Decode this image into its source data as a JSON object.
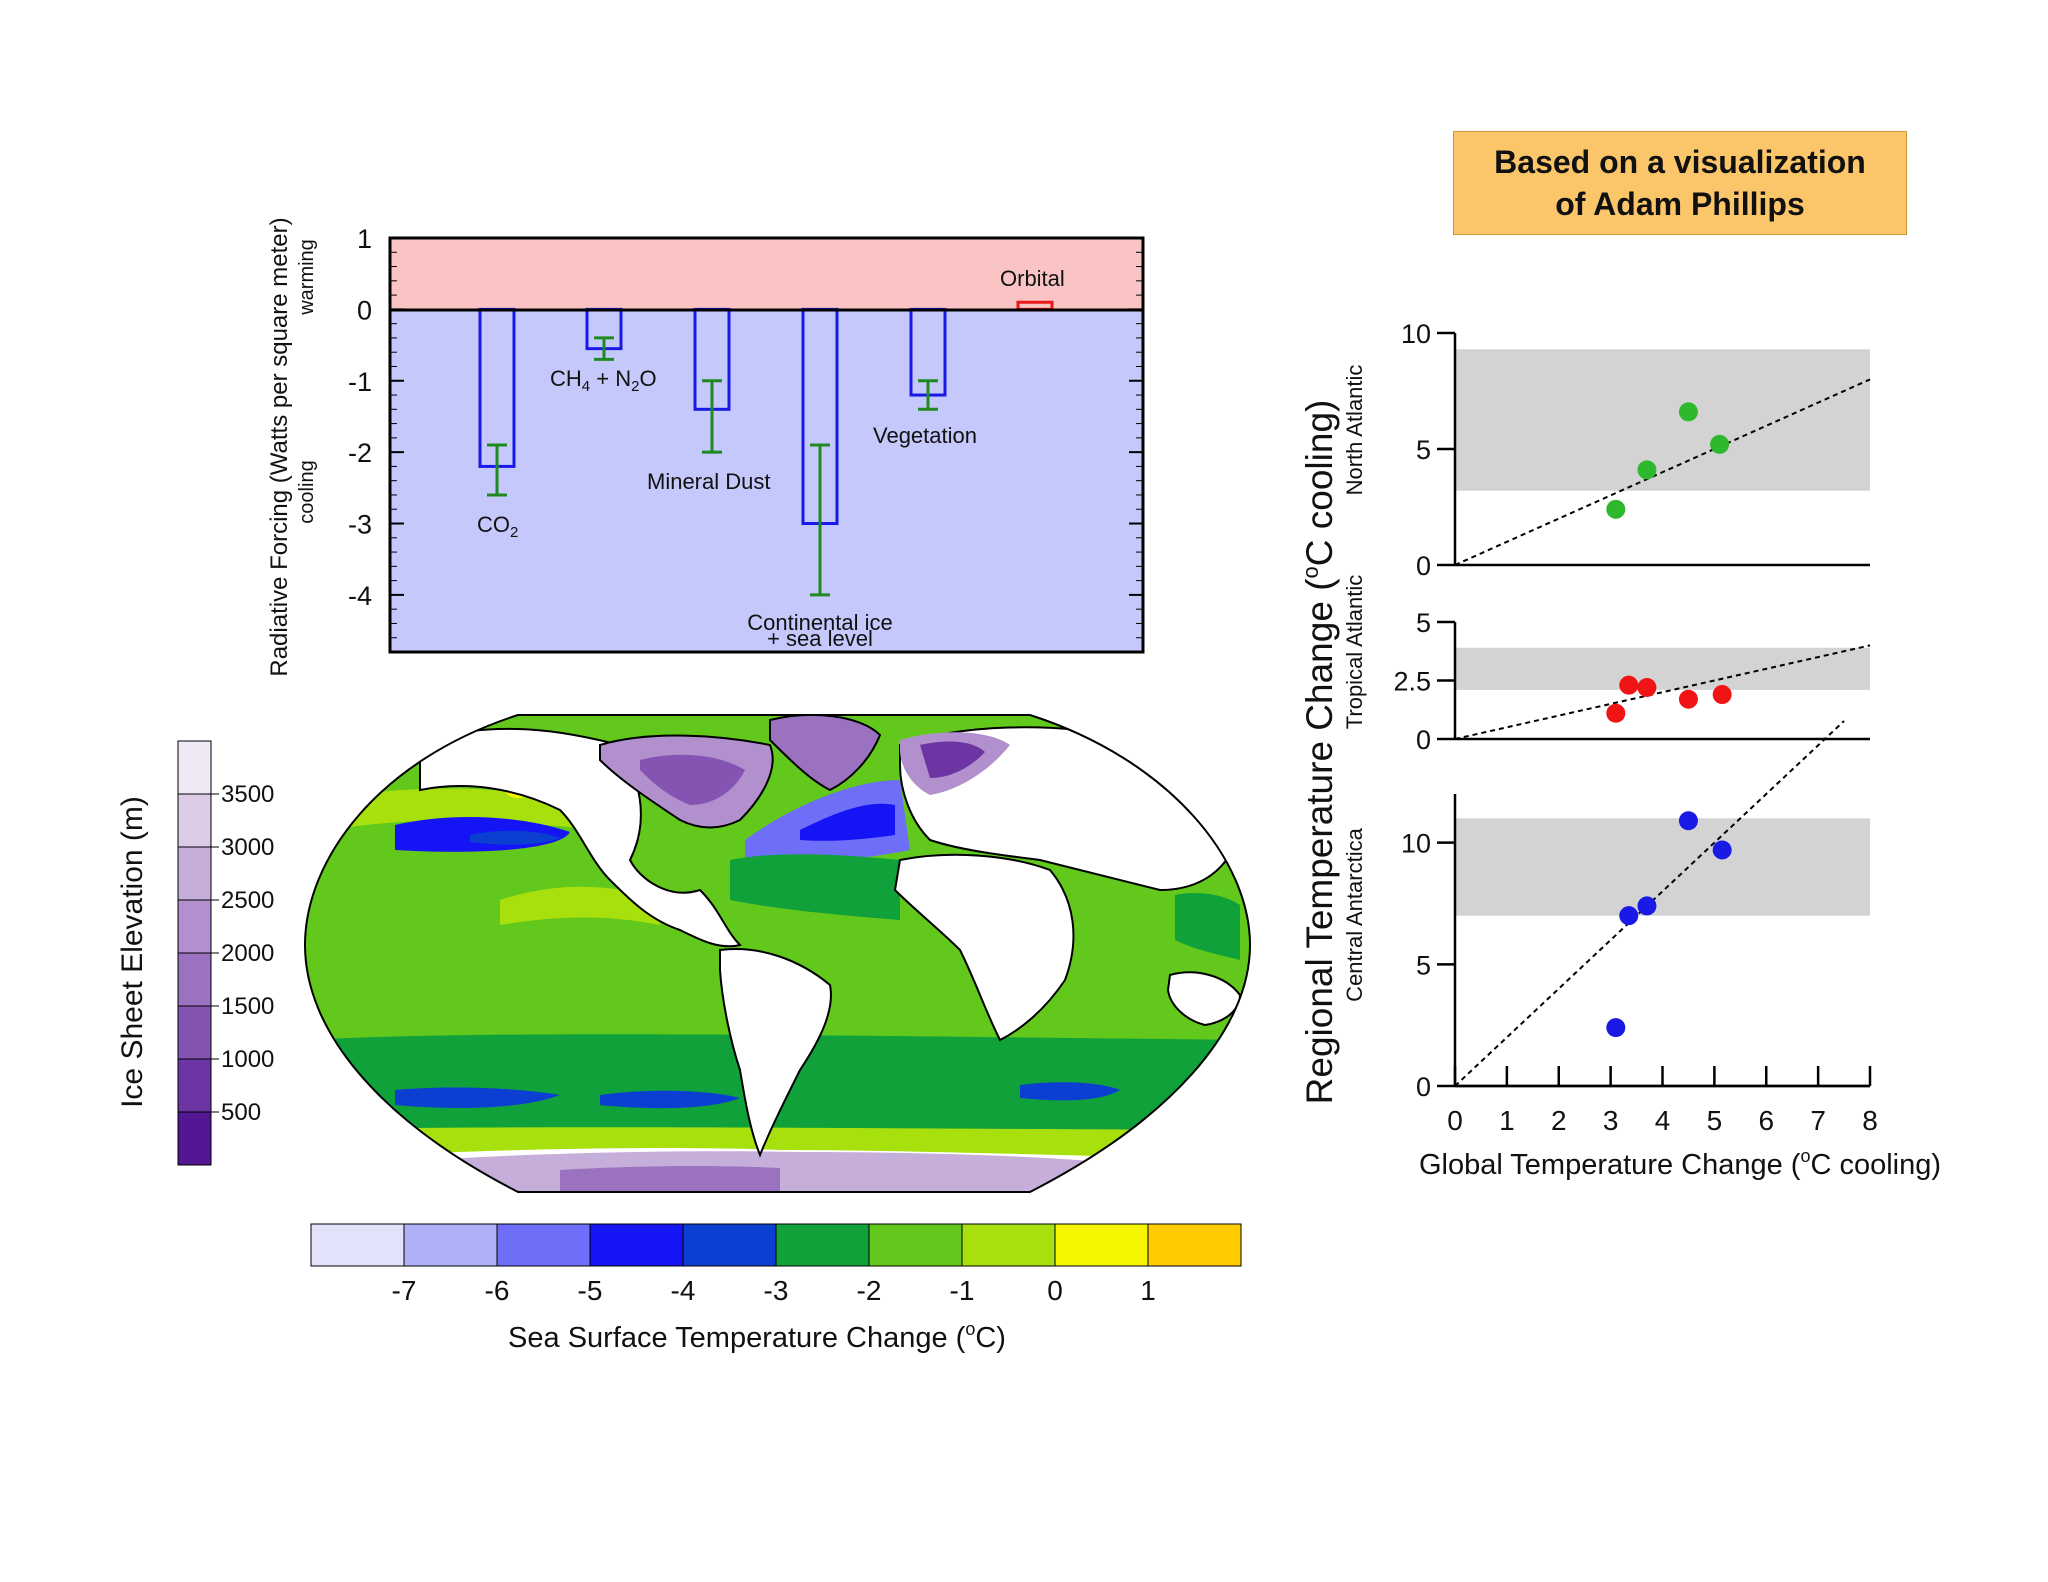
{
  "credit": {
    "line1": "Based on a visualization",
    "line2": "of Adam Phillips"
  },
  "colors": {
    "warming_bg": "#fbc4c4",
    "cooling_bg": "#c5c8fb",
    "bar_outline": "#1a1ae6",
    "error_bar": "#1f8a1f",
    "orbital_outline": "#e61a1a",
    "band_gray": "#d3d3d3",
    "north_atlantic_dots": "#2db82d",
    "tropical_atlantic_dots": "#f01414",
    "central_antarctica_dots": "#1a1ae6"
  },
  "chart_data": [
    {
      "type": "bar",
      "title": "",
      "ylabel": "Radiative Forcing (Watts per square meter)",
      "ylabel_warming": "warming",
      "ylabel_cooling": "cooling",
      "ylim": [
        -4.8,
        1
      ],
      "yticks": [
        "1",
        "0",
        "-1",
        "-2",
        "-3",
        "-4"
      ],
      "yticks_values": [
        1,
        0,
        -1,
        -2,
        -3,
        -4
      ],
      "categories": [
        "CO2",
        "CH4 + N2O",
        "Mineral Dust",
        "Continental ice + sea level",
        "Vegetation",
        "Orbital"
      ],
      "labels": {
        "co2": "CO",
        "co2_sub": "2",
        "ch4": "CH",
        "ch4_sub": "4",
        "ch4_mid": " + N",
        "n2o_sub": "2",
        "n2o_end": "O",
        "dust": "Mineral Dust",
        "ice1": "Continental ice",
        "ice2": "+ sea level",
        "veg": "Vegetation",
        "orbital": "Orbital"
      },
      "values": [
        -2.2,
        -0.55,
        -1.4,
        -3.0,
        -1.2,
        0.1
      ],
      "error_low": [
        -2.6,
        -0.7,
        -2.0,
        -4.0,
        -1.4,
        null
      ],
      "error_high": [
        -1.9,
        -0.4,
        -1.0,
        -1.9,
        -1.0,
        null
      ]
    },
    {
      "type": "heatmap",
      "title": "Sea Surface Temperature Change (°C)",
      "colorbar_label_prefix": "Sea Surface Temperature Change (",
      "colorbar_label_deg": "o",
      "colorbar_label_suffix": "C)",
      "colorbar_colors": [
        "#e3e2fb",
        "#b0b0f9",
        "#6e6ef9",
        "#1414f5",
        "#0a3fd1",
        "#11a13a",
        "#62c81c",
        "#a8e00e",
        "#f5f500",
        "#ffcc00"
      ],
      "colorbar_ticks": [
        "-7",
        "-6",
        "-5",
        "-4",
        "-3",
        "-2",
        "-1",
        "0",
        "1"
      ],
      "ice_label": "Ice Sheet Elevation (m)",
      "ice_colors": [
        "#efe8f5",
        "#dbcbe7",
        "#c6aedb",
        "#b190cd",
        "#9b72bf",
        "#8553b2",
        "#6d35a4",
        "#551696"
      ],
      "ice_ticks": [
        "3500",
        "3000",
        "2500",
        "2000",
        "1500",
        "1000",
        "500"
      ]
    },
    {
      "type": "scatter",
      "xlabel_prefix": "Global Temperature Change (",
      "xlabel_deg": "o",
      "xlabel_suffix": "C cooling)",
      "ylabel_prefix": "Regional Temperature Change (",
      "ylabel_deg": "o",
      "ylabel_suffix": "C cooling)",
      "xlim": [
        0,
        8
      ],
      "xticks": [
        "0",
        "1",
        "2",
        "3",
        "4",
        "5",
        "6",
        "7",
        "8"
      ],
      "panels": [
        {
          "name": "North Atlantic",
          "ylim": [
            0,
            10
          ],
          "yticks": [
            "10",
            "5",
            "0"
          ],
          "yticks_values": [
            10,
            5,
            0
          ],
          "band": [
            3.2,
            9.3
          ],
          "x": [
            3.1,
            3.7,
            4.5,
            5.1
          ],
          "y": [
            2.4,
            4.1,
            6.6,
            5.2
          ],
          "fit_slope": 1.0
        },
        {
          "name": "Tropical Atlantic",
          "ylim": [
            0,
            5
          ],
          "yticks": [
            "5",
            "2.5",
            "0"
          ],
          "yticks_values": [
            5,
            2.5,
            0
          ],
          "band": [
            2.1,
            3.9
          ],
          "x": [
            3.1,
            3.35,
            3.7,
            4.5,
            5.15
          ],
          "y": [
            1.1,
            2.3,
            2.2,
            1.7,
            1.9
          ],
          "fit_slope": 0.5
        },
        {
          "name": "Central Antarctica",
          "ylim": [
            0,
            12
          ],
          "yticks": [
            "10",
            "5",
            "0"
          ],
          "yticks_values": [
            10,
            5,
            0
          ],
          "band": [
            7.0,
            11.0
          ],
          "x": [
            3.1,
            3.35,
            3.7,
            4.5,
            5.15
          ],
          "y": [
            2.4,
            7.0,
            7.4,
            10.9,
            9.7
          ],
          "fit_slope": 2.0,
          "fit_xmax": 7.5
        }
      ]
    }
  ]
}
